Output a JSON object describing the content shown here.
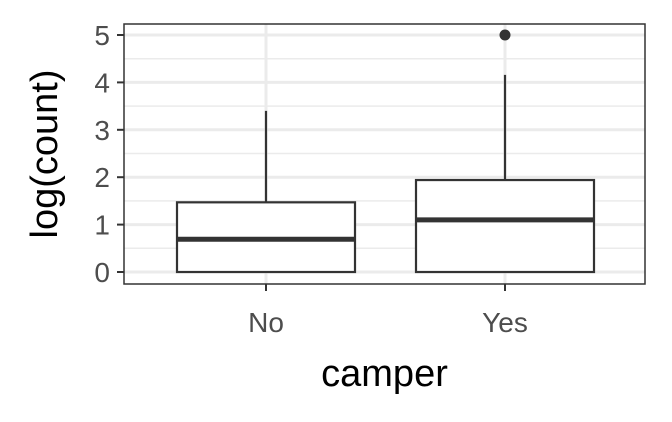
{
  "chart_data": {
    "type": "boxplot",
    "xlabel": "camper",
    "ylabel": "log(count)",
    "ylim": [
      0,
      5
    ],
    "yticks": [
      0,
      1,
      2,
      3,
      4,
      5
    ],
    "grid": true,
    "categories": [
      "No",
      "Yes"
    ],
    "boxes": [
      {
        "category": "No",
        "lower_whisker": 0,
        "q1": 0,
        "median": 0.69,
        "q3": 1.47,
        "upper_whisker": 3.4,
        "outliers": []
      },
      {
        "category": "Yes",
        "lower_whisker": 0,
        "q1": 0,
        "median": 1.1,
        "q3": 1.94,
        "upper_whisker": 4.16,
        "outliers": [
          5.0
        ]
      }
    ]
  }
}
